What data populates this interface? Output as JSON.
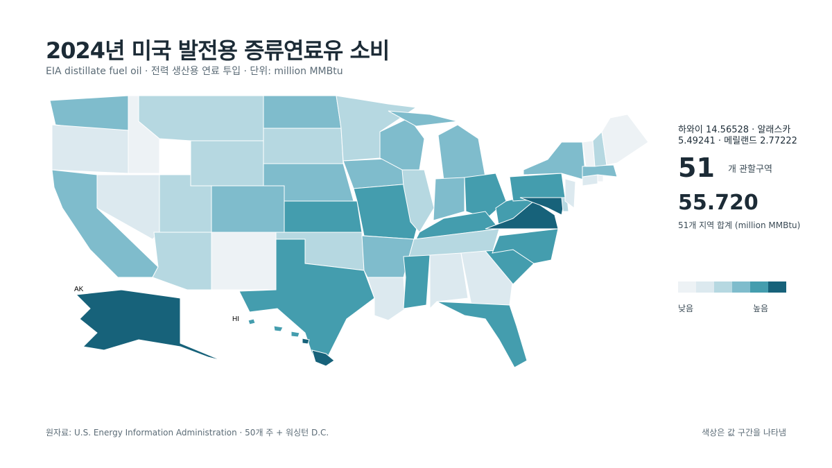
{
  "header": {
    "title": "2024년 미국 발전용 증류연료유 소비",
    "subtitle": "EIA distillate fuel oil · 전력 생산용 연료 투입 · 단위: million MMBtu"
  },
  "map": {
    "labels": [
      "AK",
      "HI"
    ],
    "stroke": "#ffffff",
    "fills": [
      3,
      1,
      3,
      0,
      1,
      2,
      2,
      2,
      2,
      3,
      0,
      3,
      2,
      3,
      4,
      2,
      4,
      2,
      3,
      4,
      3,
      1,
      3,
      2,
      3,
      3,
      4,
      4,
      2,
      4,
      1,
      1,
      4,
      4,
      4,
      4,
      5,
      4,
      3,
      3,
      5,
      2,
      1,
      1,
      0,
      3,
      0,
      2,
      0,
      5,
      5,
      4,
      4,
      4,
      5
    ]
  },
  "side": {
    "callout": "하와이 14.56528 · 알래스카 5.49241 · 메릴랜드 2.77222",
    "count": 51,
    "count_label": "개 관할구역",
    "total": "55.720",
    "total_label": "51개 지역 합계 (million MMBtu)"
  },
  "legend": {
    "colors": [
      "#edf2f5",
      "#dce9ef",
      "#b6d8e1",
      "#7fbccc",
      "#449dae",
      "#17627a"
    ],
    "low": "낮음",
    "high": "높음"
  },
  "footer": {
    "source": "원자료: U.S. Energy Information Administration · 50개 주 + 워싱턴 D.C.",
    "note": "색상은 값 구간을 나타냄"
  }
}
